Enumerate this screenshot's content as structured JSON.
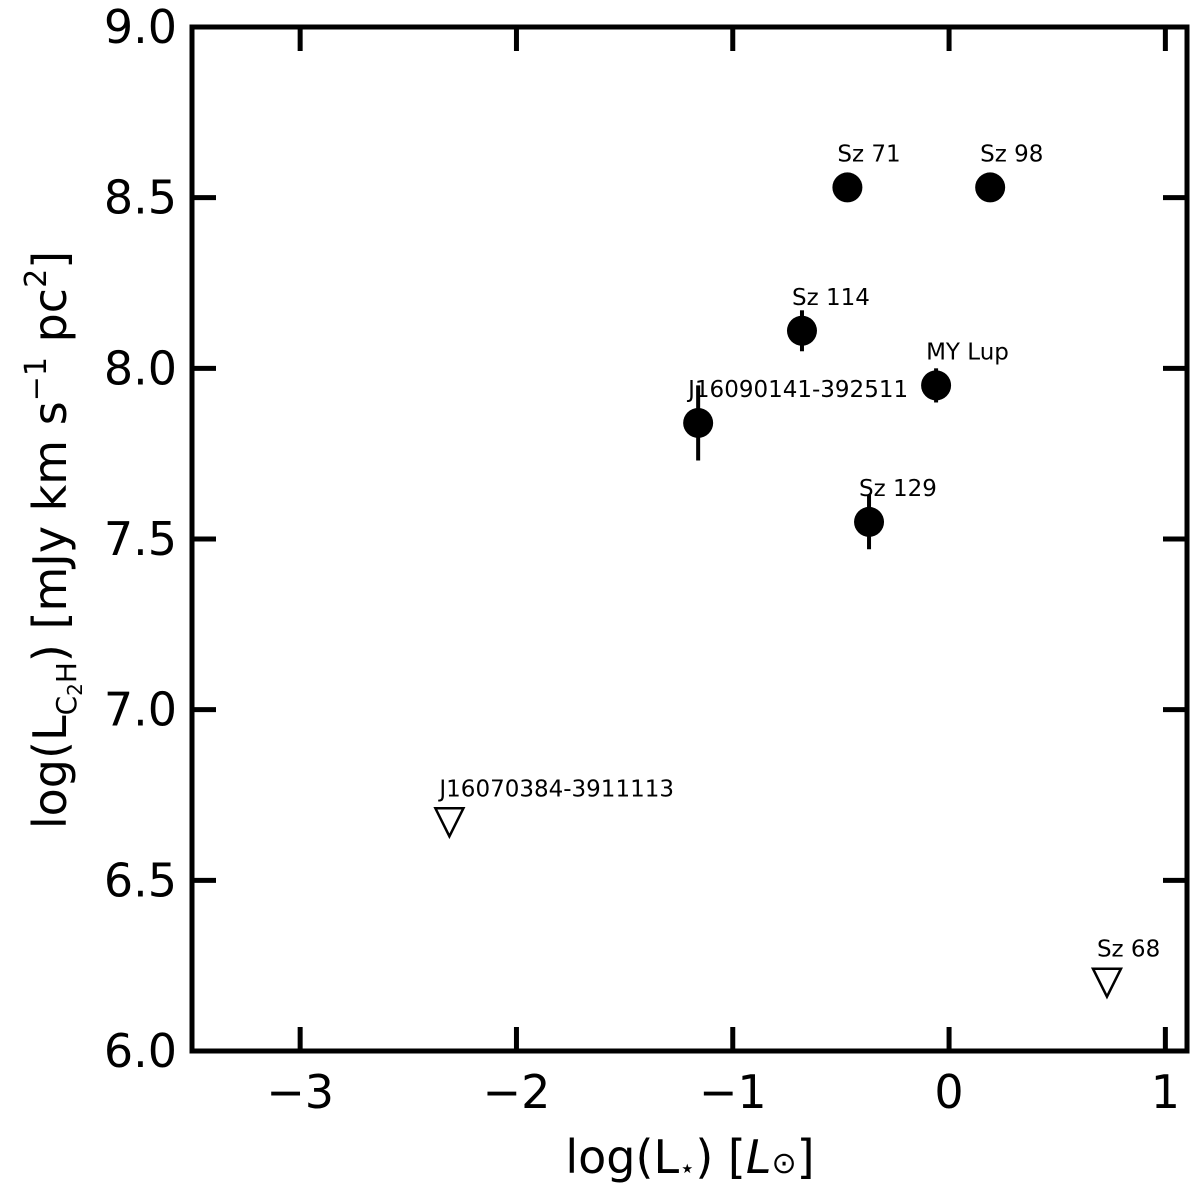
{
  "chart_data": {
    "type": "scatter",
    "xlabel": {
      "pre": "log(L",
      "sub": "⋆",
      "mid": ") [",
      "italic": "L",
      "sun": "⊙",
      "post": "]"
    },
    "ylabel": {
      "pre": "log(L",
      "sub_a": "C",
      "sub_n": "2",
      "sub_b": "H",
      "mid": ") [mJy km s",
      "sup1": "−1",
      "mid2": " pc",
      "sup2": "2",
      "post": "]"
    },
    "xlim": [
      -3.5,
      1.1
    ],
    "ylim": [
      6.0,
      9.0
    ],
    "xticks": [
      -3,
      -2,
      -1,
      0,
      1
    ],
    "xtick_labels": [
      "−3",
      "−2",
      "−1",
      "0",
      "1"
    ],
    "yticks": [
      6.0,
      6.5,
      7.0,
      7.5,
      8.0,
      8.5,
      9.0
    ],
    "ytick_labels": [
      "6.0",
      "6.5",
      "7.0",
      "7.5",
      "8.0",
      "8.5",
      "9.0"
    ],
    "grid": false,
    "series": [
      {
        "marker": "filled-circle",
        "points": [
          {
            "label": "Sz 71",
            "x": -0.47,
            "y": 8.53,
            "yerr": 0.02
          },
          {
            "label": "Sz 98",
            "x": 0.19,
            "y": 8.53,
            "yerr": 0.02
          },
          {
            "label": "Sz 114",
            "x": -0.68,
            "y": 8.11,
            "yerr": 0.06
          },
          {
            "label": "MY Lup",
            "x": -0.06,
            "y": 7.95,
            "yerr": 0.05
          },
          {
            "label": "J16090141-392511",
            "x": -1.16,
            "y": 7.84,
            "yerr": 0.11
          },
          {
            "label": "Sz 129",
            "x": -0.37,
            "y": 7.55,
            "yerr": 0.08
          }
        ]
      },
      {
        "marker": "open-triangle-down",
        "points": [
          {
            "label": "J16070384-3911113",
            "x": -2.31,
            "y": 6.67
          },
          {
            "label": "Sz 68",
            "x": 0.73,
            "y": 6.2
          }
        ]
      }
    ],
    "colors": {
      "marker": "#000000",
      "axes": "#000000",
      "background": "#ffffff"
    }
  }
}
